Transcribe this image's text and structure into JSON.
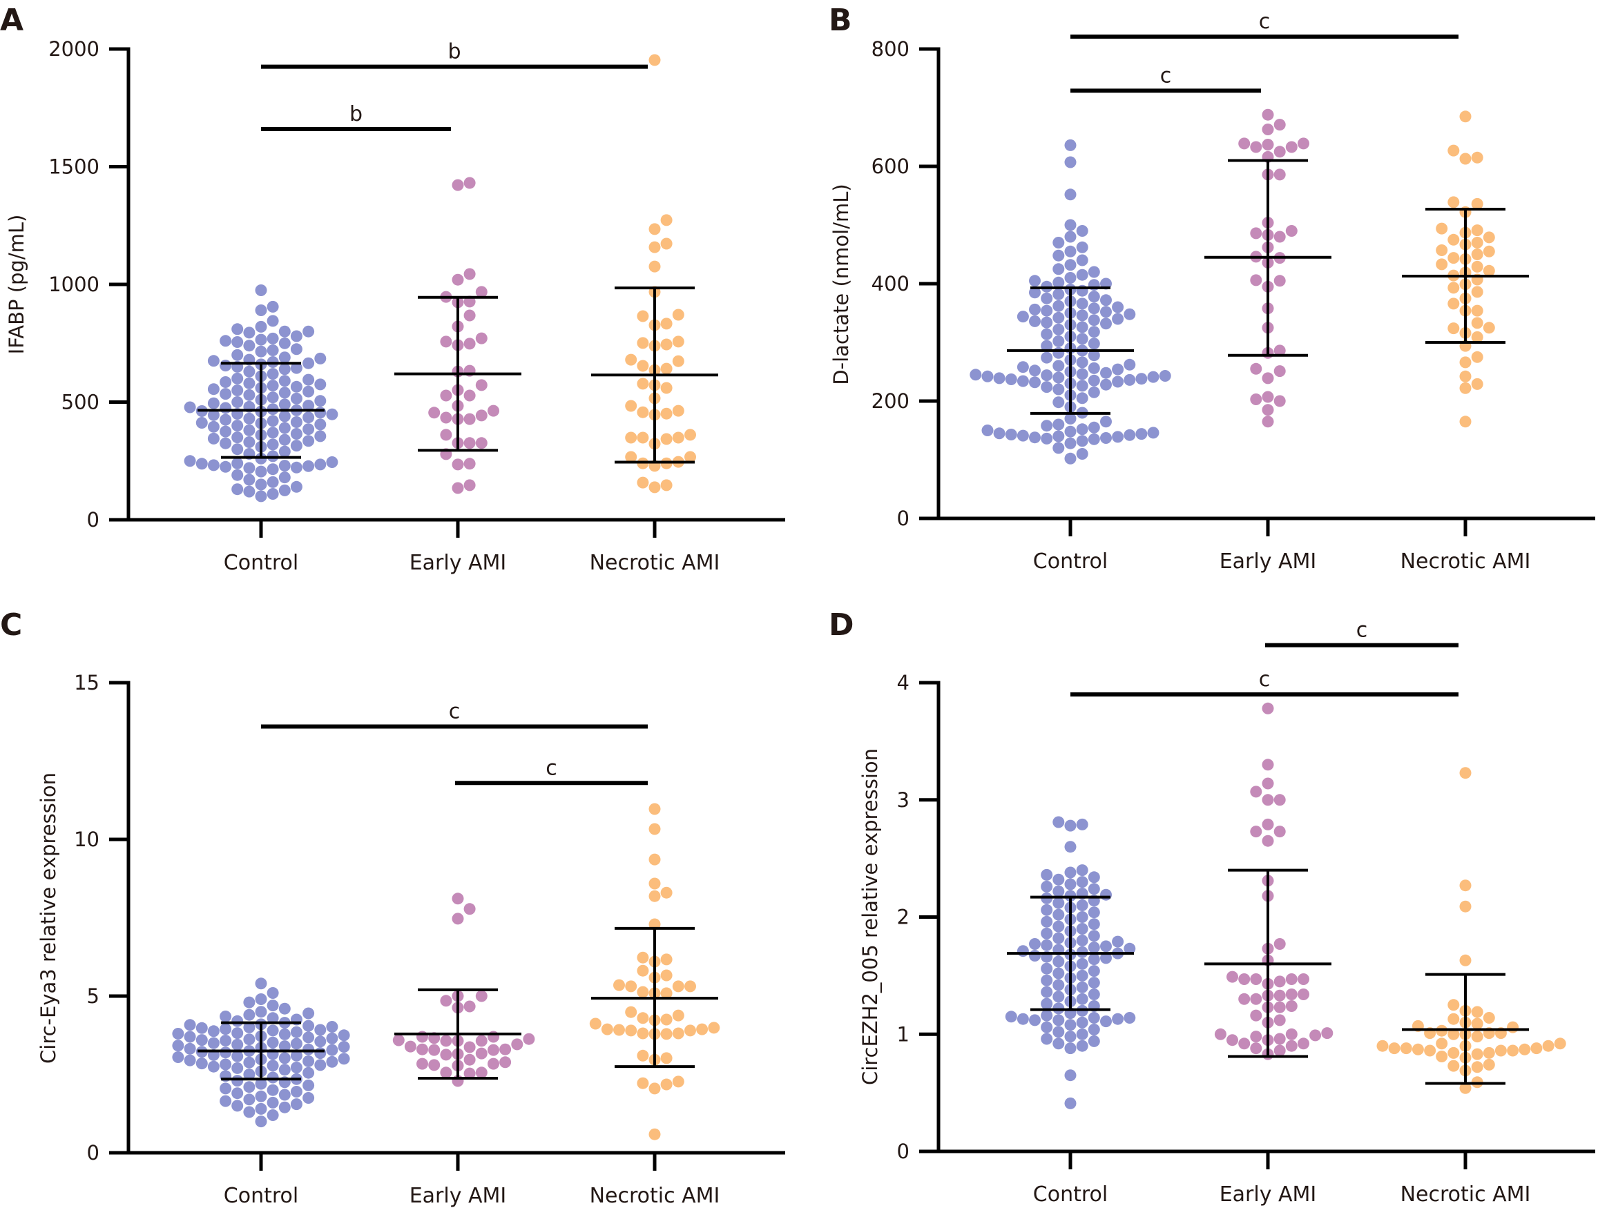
{
  "chart_data": [
    {
      "panel": "A",
      "type": "scatter",
      "subtype": "dot-plot-mean-sd",
      "title": "",
      "xlabel": "",
      "ylabel": "IFABP (pg/mL)",
      "ylim": [
        0,
        2000
      ],
      "yticks": [
        0,
        500,
        1000,
        1500,
        2000
      ],
      "categories": [
        "Control",
        "Early AMI",
        "Necrotic AMI"
      ],
      "series": [
        {
          "name": "Control",
          "color": "#8c93d0",
          "mean": 465,
          "sd_upper": 665,
          "sd_lower": 265,
          "values": [
            975,
            905,
            890,
            845,
            820,
            810,
            800,
            800,
            795,
            780,
            770,
            765,
            760,
            755,
            750,
            740,
            725,
            720,
            715,
            700,
            690,
            685,
            680,
            675,
            670,
            665,
            660,
            655,
            650,
            645,
            640,
            630,
            620,
            610,
            600,
            595,
            590,
            585,
            580,
            575,
            570,
            565,
            560,
            555,
            550,
            545,
            540,
            535,
            530,
            520,
            515,
            510,
            505,
            500,
            495,
            490,
            485,
            480,
            478,
            475,
            470,
            465,
            462,
            460,
            455,
            450,
            448,
            445,
            440,
            435,
            430,
            425,
            420,
            415,
            412,
            410,
            405,
            400,
            395,
            390,
            385,
            380,
            375,
            370,
            365,
            360,
            355,
            350,
            345,
            340,
            335,
            330,
            325,
            320,
            315,
            310,
            300,
            290,
            280,
            270,
            260,
            250,
            245,
            240,
            238,
            235,
            232,
            230,
            228,
            225,
            222,
            220,
            215,
            205,
            190,
            180,
            170,
            160,
            150,
            140,
            130,
            125,
            120,
            110,
            100
          ]
        },
        {
          "name": "Early AMI",
          "color": "#c48ab8",
          "mean": 620,
          "sd_upper": 945,
          "sd_lower": 295,
          "values": [
            1431,
            1422,
            1044,
            1020,
            968,
            947,
            927,
            924,
            868,
            821,
            771,
            757,
            748,
            742,
            633,
            630,
            572,
            551,
            528,
            528,
            484,
            463,
            455,
            443,
            434,
            428,
            428,
            361,
            326,
            326,
            326,
            279,
            238,
            235,
            147,
            135
          ]
        },
        {
          "name": "Necrotic AMI",
          "color": "#fbbd7c",
          "mean": 615,
          "sd_upper": 985,
          "sd_lower": 245,
          "values": [
            1953,
            1273,
            1235,
            1173,
            1158,
            1076,
            968,
            871,
            865,
            833,
            827,
            757,
            751,
            745,
            739,
            680,
            674,
            654,
            642,
            636,
            578,
            572,
            560,
            516,
            484,
            463,
            457,
            451,
            446,
            361,
            349,
            349,
            349,
            343,
            323,
            267,
            267,
            246,
            240,
            240,
            229,
            158,
            147,
            138
          ]
        }
      ],
      "significance": [
        {
          "from": "Control",
          "to": "Necrotic AMI",
          "label": "b",
          "level": 1925
        },
        {
          "from": "Control",
          "to": "Early AMI",
          "label": "b",
          "level": 1660
        }
      ]
    },
    {
      "panel": "B",
      "type": "scatter",
      "subtype": "dot-plot-mean-sd",
      "title": "",
      "xlabel": "",
      "ylabel": "D-lactate (nmol/mL)",
      "ylim": [
        0,
        800
      ],
      "yticks": [
        0,
        200,
        400,
        600,
        800
      ],
      "categories": [
        "Control",
        "Early AMI",
        "Necrotic AMI"
      ],
      "series": [
        {
          "name": "Control",
          "color": "#8c93d0",
          "mean": 286,
          "sd_upper": 393,
          "sd_lower": 179,
          "values": [
            636,
            607,
            552,
            500,
            490,
            480,
            470,
            462,
            455,
            448,
            440,
            432,
            425,
            420,
            415,
            410,
            405,
            402,
            400,
            398,
            395,
            390,
            388,
            385,
            382,
            378,
            375,
            372,
            370,
            366,
            362,
            360,
            358,
            356,
            354,
            352,
            350,
            348,
            346,
            344,
            342,
            340,
            338,
            336,
            334,
            332,
            330,
            326,
            322,
            318,
            314,
            310,
            306,
            302,
            298,
            294,
            290,
            286,
            282,
            278,
            274,
            270,
            266,
            262,
            260,
            258,
            256,
            254,
            252,
            250,
            248,
            246,
            245,
            244,
            243,
            242,
            241,
            240,
            239,
            238,
            237,
            236,
            235,
            234,
            233,
            232,
            230,
            228,
            226,
            224,
            220,
            215,
            210,
            205,
            198,
            190,
            180,
            170,
            165,
            160,
            158,
            155,
            152,
            150,
            148,
            146,
            145,
            144,
            143,
            142,
            141,
            140,
            139,
            138,
            137,
            136,
            135,
            132,
            128,
            120,
            110,
            102
          ]
        },
        {
          "name": "Early AMI",
          "color": "#c48ab8",
          "mean": 445,
          "sd_upper": 610,
          "sd_lower": 278,
          "values": [
            688,
            671,
            663,
            639,
            639,
            637,
            633,
            633,
            625,
            616,
            586,
            586,
            504,
            490,
            486,
            483,
            480,
            462,
            446,
            444,
            436,
            406,
            405,
            395,
            358,
            325,
            286,
            282,
            255,
            251,
            239,
            207,
            203,
            200,
            185,
            165
          ]
        },
        {
          "name": "Necrotic AMI",
          "color": "#fbbd7c",
          "mean": 413,
          "sd_upper": 527,
          "sd_lower": 300,
          "values": [
            685,
            627,
            615,
            613,
            539,
            536,
            522,
            494,
            491,
            487,
            479,
            475,
            470,
            467,
            457,
            455,
            450,
            444,
            442,
            433,
            429,
            422,
            419,
            414,
            407,
            399,
            393,
            386,
            375,
            366,
            354,
            354,
            333,
            325,
            324,
            316,
            309,
            294,
            275,
            266,
            242,
            229,
            222,
            165
          ]
        }
      ],
      "significance": [
        {
          "from": "Control",
          "to": "Necrotic AMI",
          "label": "c",
          "level": 821
        },
        {
          "from": "Control",
          "to": "Early AMI",
          "label": "c",
          "level": 729
        }
      ]
    },
    {
      "panel": "C",
      "type": "scatter",
      "subtype": "dot-plot-mean-sd",
      "title": "",
      "xlabel": "",
      "ylabel": "Circ-Eya3 relative expression",
      "ylim": [
        0,
        15
      ],
      "yticks": [
        0,
        5,
        10,
        15
      ],
      "categories": [
        "Control",
        "Early AMI",
        "Necrotic AMI"
      ],
      "series": [
        {
          "name": "Control",
          "color": "#8c93d0",
          "mean": 3.25,
          "sd_upper": 4.15,
          "sd_lower": 2.35,
          "values": [
            5.4,
            5.1,
            4.9,
            4.8,
            4.7,
            4.6,
            4.5,
            4.45,
            4.4,
            4.35,
            4.3,
            4.25,
            4.2,
            4.15,
            4.1,
            4.08,
            4.05,
            4.02,
            4.0,
            3.98,
            3.95,
            3.92,
            3.9,
            3.88,
            3.85,
            3.82,
            3.8,
            3.78,
            3.75,
            3.72,
            3.7,
            3.68,
            3.65,
            3.62,
            3.6,
            3.58,
            3.55,
            3.52,
            3.5,
            3.48,
            3.45,
            3.42,
            3.4,
            3.38,
            3.35,
            3.32,
            3.3,
            3.28,
            3.25,
            3.22,
            3.2,
            3.18,
            3.15,
            3.12,
            3.1,
            3.08,
            3.05,
            3.02,
            3.0,
            2.98,
            2.95,
            2.92,
            2.9,
            2.88,
            2.85,
            2.82,
            2.8,
            2.78,
            2.75,
            2.72,
            2.7,
            2.65,
            2.6,
            2.55,
            2.5,
            2.45,
            2.4,
            2.35,
            2.3,
            2.25,
            2.2,
            2.15,
            2.1,
            2.05,
            2.0,
            1.95,
            1.9,
            1.85,
            1.8,
            1.75,
            1.7,
            1.65,
            1.6,
            1.55,
            1.5,
            1.45,
            1.4,
            1.3,
            1.2,
            1.0
          ]
        },
        {
          "name": "Early AMI",
          "color": "#c48ab8",
          "mean": 3.79,
          "sd_upper": 5.2,
          "sd_lower": 2.38,
          "values": [
            8.11,
            7.78,
            7.47,
            5.0,
            5.0,
            4.85,
            4.67,
            4.63,
            3.7,
            3.7,
            3.66,
            3.63,
            3.59,
            3.57,
            3.57,
            3.57,
            3.46,
            3.37,
            3.39,
            3.3,
            3.28,
            3.28,
            3.3,
            3.17,
            3.15,
            3.13,
            2.97,
            2.89,
            2.84,
            2.84,
            2.8,
            2.78,
            2.56,
            2.56,
            2.53,
            2.29
          ]
        },
        {
          "name": "Necrotic AMI",
          "color": "#fbbd7c",
          "mean": 4.93,
          "sd_upper": 7.16,
          "sd_lower": 2.75,
          "values": [
            10.97,
            10.33,
            9.36,
            8.59,
            8.3,
            8.19,
            7.29,
            6.23,
            6.17,
            6.1,
            5.81,
            5.66,
            5.59,
            5.35,
            5.31,
            5.31,
            5.31,
            5.13,
            5.09,
            5.09,
            4.49,
            4.38,
            4.3,
            4.25,
            4.23,
            4.12,
            3.99,
            3.94,
            3.94,
            3.92,
            3.9,
            3.9,
            3.81,
            3.81,
            3.79,
            3.79,
            3.1,
            3.02,
            2.97,
            2.27,
            2.22,
            2.18,
            2.05,
            0.59
          ]
        }
      ],
      "significance": [
        {
          "from": "Control",
          "to": "Necrotic AMI",
          "label": "c",
          "level": 13.6
        },
        {
          "from": "Early AMI",
          "to": "Necrotic AMI",
          "label": "c",
          "level": 11.8
        }
      ]
    },
    {
      "panel": "D",
      "type": "scatter",
      "subtype": "dot-plot-mean-sd",
      "title": "",
      "xlabel": "",
      "ylabel": "CircEZH2_005 relative expression",
      "ylim": [
        0,
        4
      ],
      "yticks": [
        0,
        1,
        2,
        3,
        4
      ],
      "categories": [
        "Control",
        "Early AMI",
        "Necrotic AMI"
      ],
      "series": [
        {
          "name": "Control",
          "color": "#8c93d0",
          "mean": 1.69,
          "sd_upper": 2.17,
          "sd_lower": 1.21,
          "values": [
            2.81,
            2.79,
            2.78,
            2.6,
            2.4,
            2.38,
            2.36,
            2.34,
            2.32,
            2.3,
            2.28,
            2.26,
            2.24,
            2.22,
            2.2,
            2.19,
            2.18,
            2.16,
            2.14,
            2.12,
            2.1,
            2.08,
            2.06,
            2.04,
            2.02,
            2.0,
            1.98,
            1.96,
            1.94,
            1.92,
            1.9,
            1.88,
            1.86,
            1.84,
            1.82,
            1.8,
            1.79,
            1.78,
            1.77,
            1.76,
            1.75,
            1.74,
            1.73,
            1.72,
            1.71,
            1.7,
            1.69,
            1.68,
            1.67,
            1.66,
            1.65,
            1.64,
            1.62,
            1.6,
            1.58,
            1.56,
            1.54,
            1.52,
            1.5,
            1.48,
            1.46,
            1.44,
            1.42,
            1.4,
            1.38,
            1.36,
            1.34,
            1.32,
            1.3,
            1.28,
            1.26,
            1.24,
            1.22,
            1.2,
            1.18,
            1.16,
            1.15,
            1.14,
            1.14,
            1.13,
            1.13,
            1.12,
            1.12,
            1.11,
            1.1,
            1.08,
            1.06,
            1.04,
            1.02,
            1.0,
            0.98,
            0.96,
            0.94,
            0.92,
            0.9,
            0.88,
            0.65,
            0.41
          ]
        },
        {
          "name": "Early AMI",
          "color": "#c48ab8",
          "mean": 1.6,
          "sd_upper": 2.4,
          "sd_lower": 0.81,
          "values": [
            3.78,
            3.3,
            3.14,
            3.07,
            3.0,
            3.0,
            2.79,
            2.73,
            2.73,
            2.65,
            2.31,
            2.18,
            1.77,
            1.73,
            1.63,
            1.49,
            1.47,
            1.47,
            1.47,
            1.45,
            1.43,
            1.47,
            1.34,
            1.33,
            1.3,
            1.33,
            1.3,
            1.34,
            1.24,
            1.23,
            1.23,
            1.16,
            1.12,
            1.1,
            1.01,
            1.0,
            1.0,
            0.99,
            0.98,
            0.96,
            0.95,
            0.95,
            0.92,
            0.92,
            0.9,
            0.88,
            0.86,
            0.83
          ]
        },
        {
          "name": "Necrotic AMI",
          "color": "#fbbd7c",
          "mean": 1.04,
          "sd_upper": 1.51,
          "sd_lower": 0.58,
          "values": [
            3.23,
            2.27,
            2.09,
            1.63,
            1.25,
            1.2,
            1.19,
            1.14,
            1.13,
            1.1,
            1.09,
            1.07,
            1.06,
            1.03,
            1.01,
            1.01,
            1.01,
            1.0,
            1.0,
            0.98,
            0.92,
            0.92,
            0.9,
            0.9,
            0.9,
            0.88,
            0.88,
            0.87,
            0.87,
            0.88,
            0.86,
            0.86,
            0.86,
            0.84,
            0.84,
            0.83,
            0.81,
            0.8,
            0.74,
            0.72,
            0.73,
            0.69,
            0.59,
            0.54
          ]
        }
      ],
      "significance": [
        {
          "from": "Early AMI",
          "to": "Necrotic AMI",
          "label": "c",
          "level": 4.32
        },
        {
          "from": "Control",
          "to": "Necrotic AMI",
          "label": "c",
          "level": 3.9
        }
      ]
    }
  ]
}
